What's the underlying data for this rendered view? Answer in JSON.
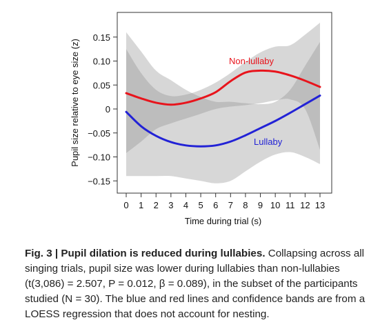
{
  "chart_data": {
    "type": "line",
    "xlabel": "Time during trial (s)",
    "ylabel": "Pupil size relative to eye size (z)",
    "xlim": [
      0,
      13
    ],
    "ylim": [
      -0.17,
      0.2
    ],
    "x_ticks": [
      "0",
      "1",
      "2",
      "3",
      "4",
      "5",
      "6",
      "7",
      "8",
      "9",
      "10",
      "11",
      "12",
      "13"
    ],
    "y_ticks": [
      "0.15",
      "0.10",
      "0.05",
      "0",
      "−0.05",
      "−0.10",
      "−0.15"
    ],
    "y_tick_values": [
      0.15,
      0.1,
      0.05,
      0,
      -0.05,
      -0.1,
      -0.15
    ],
    "grid": false,
    "x": [
      0,
      1,
      2,
      3,
      4,
      5,
      6,
      7,
      8,
      9,
      10,
      11,
      12,
      13
    ],
    "series": [
      {
        "name": "Non-lullaby",
        "color": "#e8141c",
        "values": [
          0.033,
          0.022,
          0.013,
          0.009,
          0.013,
          0.022,
          0.035,
          0.058,
          0.076,
          0.08,
          0.078,
          0.07,
          0.059,
          0.046
        ],
        "ci_upper": [
          0.125,
          0.075,
          0.04,
          0.027,
          0.03,
          0.04,
          0.055,
          0.075,
          0.098,
          0.118,
          0.13,
          0.133,
          0.155,
          0.18
        ],
        "ci_lower": [
          -0.092,
          -0.068,
          -0.042,
          -0.03,
          -0.02,
          -0.01,
          0.0,
          0.005,
          0.008,
          0.012,
          0.018,
          0.02,
          0.0,
          -0.085
        ]
      },
      {
        "name": "Lullaby",
        "color": "#2222d6",
        "values": [
          -0.006,
          -0.036,
          -0.056,
          -0.069,
          -0.076,
          -0.078,
          -0.076,
          -0.068,
          -0.055,
          -0.04,
          -0.025,
          -0.008,
          0.01,
          0.028
        ],
        "ci_upper": [
          0.16,
          0.12,
          0.08,
          0.06,
          0.04,
          0.025,
          0.015,
          0.015,
          0.012,
          0.01,
          0.015,
          0.04,
          0.09,
          0.14
        ],
        "ci_lower": [
          -0.14,
          -0.14,
          -0.14,
          -0.14,
          -0.145,
          -0.15,
          -0.155,
          -0.15,
          -0.13,
          -0.11,
          -0.095,
          -0.09,
          -0.1,
          -0.115
        ]
      }
    ]
  },
  "caption": {
    "fig_label": "Fig. 3 | Pupil dilation is reduced during lullabies.",
    "line1": " Collapsing across all",
    "line2": "singing trials, pupil size was lower during lullabies than non-lullabies",
    "line3": "(t(3,086) = 2.507, P = 0.012, β = 0.089), in the subset of the participants",
    "line4": "studied (N = 30). The blue and red lines and confidence bands are from a",
    "line5": "LOESS regression that does not account for nesting."
  }
}
